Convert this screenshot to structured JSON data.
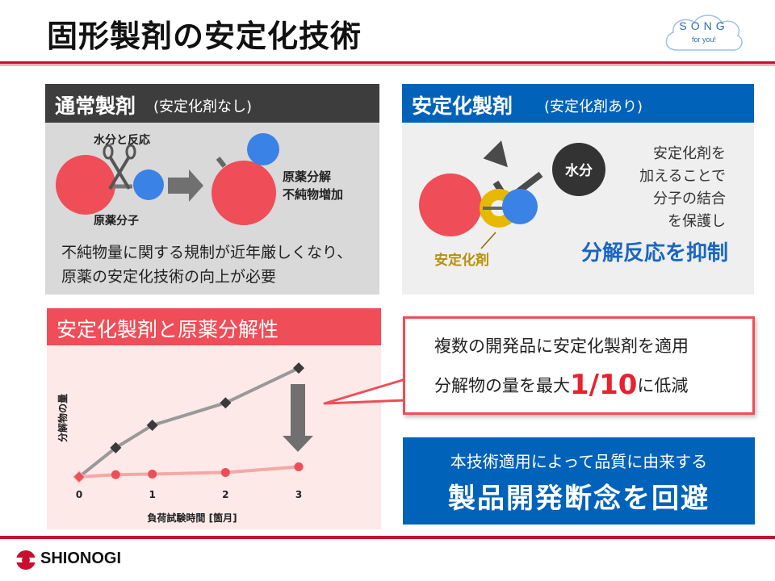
{
  "slide": {
    "title": "固形製剤の安定化技術"
  },
  "song_logo": {
    "main": "SONG",
    "sub": "for you!"
  },
  "panel_normal": {
    "title": "通常製剤",
    "subtitle": "(安定化剤なし)",
    "label_reaction": "水分と反応",
    "label_molecule": "原薬分子",
    "label_result_1": "原薬分解",
    "label_result_2": "不純物増加",
    "text_line_1": "不純物量に関する規制が近年厳しくなり、",
    "text_line_2": "原薬の安定化技術の向上が必要"
  },
  "panel_stabilized": {
    "title": "安定化製剤",
    "subtitle": "(安定化剤あり)",
    "label_water": "水分",
    "label_stabilizer": "安定化剤",
    "text_line_1": "安定化剤を",
    "text_line_2": "加えることで",
    "text_line_3": "分子の結合",
    "text_line_4": "を保護し",
    "emphasis": "分解反応を抑制"
  },
  "panel_chart": {
    "title": "安定化製剤と原薬分解性"
  },
  "chart_data": {
    "type": "line",
    "xlabel": "負荷試験時間 [箇月]",
    "ylabel": "分解物の量",
    "x_ticks": [
      "0",
      "1",
      "2",
      "3"
    ],
    "xlim": [
      0,
      3
    ],
    "ylim": [
      0,
      10
    ],
    "series": [
      {
        "x": [
          0,
          0.5,
          1,
          2,
          3
        ],
        "y": [
          0,
          2.6,
          4.6,
          6.6,
          9.7
        ],
        "color": "#999999",
        "marker": "diamond"
      },
      {
        "x": [
          0,
          0.5,
          1,
          2,
          3
        ],
        "y": [
          0,
          0.2,
          0.25,
          0.4,
          0.9
        ],
        "color": "#f4a8a8",
        "marker": "circle"
      }
    ]
  },
  "callout": {
    "line_1": "複数の開発品に安定化製剤を適用",
    "line_2_pre": "分解物の量を最大",
    "line_2_big": "1/10",
    "line_2_post": "に低減"
  },
  "conclusion": {
    "line_1": "本技術適用によって品質に由来する",
    "line_2": "製品開発断念を回避"
  },
  "footer": {
    "company": "SHIONOGI"
  },
  "colors": {
    "red": "#ef4d58",
    "blue": "#0062b8",
    "gold": "#e6b800",
    "molecule_blue": "#3b82e6",
    "dark": "#3d3d3d"
  }
}
